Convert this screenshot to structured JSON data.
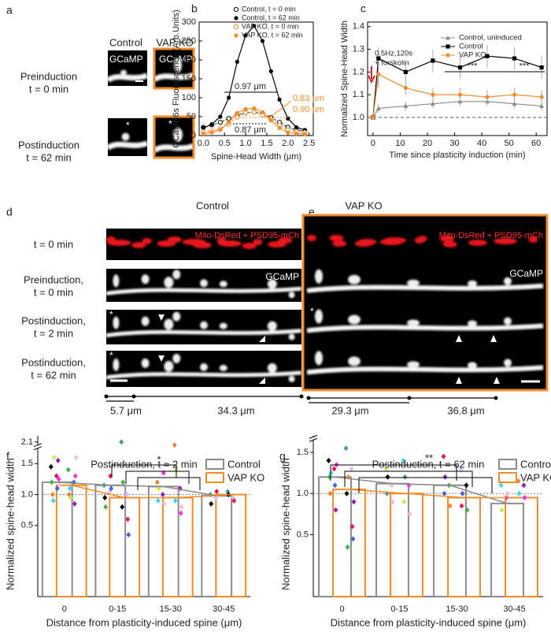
{
  "panel_labels": [
    "a",
    "b",
    "c",
    "d",
    "e",
    "f",
    "g"
  ],
  "panel_a": {
    "columns": [
      "Control",
      "VAP KO"
    ],
    "rows": [
      [
        "Preinduction",
        "t = 0 min"
      ],
      [
        "Postinduction",
        "t = 62 min"
      ]
    ],
    "image_labels": [
      "GCaMP",
      "GCaMP"
    ],
    "markers": [
      "*",
      "*"
    ]
  },
  "panel_d": {
    "title": "Control",
    "overlay_label": "Mito-DsRed + PSD95-mCh",
    "channel_label": "GCaMP",
    "rows": [
      [
        "t = 0 min"
      ],
      [
        "Preinduction,",
        "t = 0 min"
      ],
      [
        "Postinduction,",
        "t =  2 min"
      ],
      [
        "Postinduction,",
        "t = 62 min"
      ]
    ],
    "markers": [
      "*",
      "*"
    ],
    "distances": [
      "5.7 μm",
      "34.3 μm"
    ]
  },
  "panel_e": {
    "title": "VAP KO",
    "overlay_label": "Mito-DsRed + PSD95-mCh",
    "channel_label": "GCaMP",
    "markers": [
      "*"
    ],
    "distances": [
      "29.3 μm",
      "36.8 μm"
    ]
  },
  "chart_data": [
    {
      "type": "line",
      "xlabel": "Spine-Head Width (μm)",
      "ylabel": "GCaMP6s Fluorescence (Arb.Units)",
      "x": [
        0,
        0.2,
        0.4,
        0.6,
        0.8,
        1.0,
        1.2,
        1.4,
        1.6,
        1.8,
        2.0,
        2.2,
        2.4
      ],
      "xlim": [
        -0.1,
        2.6
      ],
      "xticks": [
        {
          "value": 0,
          "label": "0.0"
        },
        0.5,
        {
          "value": 1,
          "label": "1.0"
        },
        1.5,
        {
          "value": 2,
          "label": "2.0"
        },
        2.5
      ],
      "ylim": [
        0,
        300
      ],
      "yticks": [
        0,
        50,
        100,
        150,
        200,
        250,
        300
      ],
      "series": [
        {
          "name": "Control,   t = 0 min",
          "color": "#000000",
          "marker": "open",
          "values": [
            22,
            28,
            35,
            45,
            55,
            60,
            62,
            58,
            48,
            35,
            22,
            15,
            12
          ]
        },
        {
          "name": "Control,   t = 62 min",
          "color": "#000000",
          "marker": "filled",
          "values": [
            20,
            30,
            50,
            100,
            195,
            265,
            290,
            250,
            170,
            95,
            45,
            22,
            15
          ]
        },
        {
          "name": "VAP KO, t = 0 min",
          "color": "#f28c28",
          "marker": "open",
          "values": [
            10,
            12,
            18,
            30,
            48,
            60,
            62,
            55,
            42,
            28,
            15,
            10,
            8
          ]
        },
        {
          "name": "VAP KO, t = 62 min",
          "color": "#f28c28",
          "marker": "filled",
          "values": [
            5,
            8,
            15,
            35,
            60,
            70,
            72,
            62,
            40,
            20,
            8,
            5,
            4
          ]
        }
      ],
      "annotations": [
        "0.97 μm",
        "0.87 μm",
        "0.83 μm",
        "0.90 μm"
      ]
    },
    {
      "type": "line",
      "xlabel": "Time since plasticity induction (min)",
      "ylabel": "Normalized Spine-Head Width",
      "x": [
        0,
        2,
        12,
        22,
        32,
        42,
        52,
        62
      ],
      "xlim": [
        -2,
        64
      ],
      "xticks": [
        0,
        10,
        20,
        30,
        40,
        50,
        60
      ],
      "ylim": [
        0.92,
        1.42
      ],
      "yticks": [
        {
          "value": 1,
          "label": "1.0"
        },
        1.1,
        1.2,
        1.3,
        1.4
      ],
      "hline": 1,
      "series": [
        {
          "name": "Control, uninduced",
          "color": "#8c8c8c",
          "marker": "triangle",
          "values": [
            1.0,
            1.04,
            1.05,
            1.06,
            1.07,
            1.07,
            1.06,
            1.05
          ],
          "errors": [
            0,
            0.02,
            0.02,
            0.02,
            0.02,
            0.02,
            0.02,
            0.02
          ]
        },
        {
          "name": "Control",
          "color": "#000000",
          "marker": "square",
          "values": [
            1.0,
            1.26,
            1.2,
            1.25,
            1.22,
            1.27,
            1.26,
            1.22
          ],
          "errors": [
            0,
            0.05,
            0.04,
            0.05,
            0.05,
            0.05,
            0.05,
            0.05
          ]
        },
        {
          "name": "VAP KO",
          "color": "#f28c28",
          "marker": "circle",
          "values": [
            1.0,
            1.19,
            1.13,
            1.1,
            1.1,
            1.09,
            1.1,
            1.09
          ],
          "errors": [
            0,
            0.06,
            0.03,
            0.03,
            0.03,
            0.03,
            0.03,
            0.03
          ]
        }
      ],
      "annotations": [
        "0.5Hz,120s",
        "+ forskolin",
        "***",
        "***"
      ]
    },
    {
      "type": "bar",
      "title": "Postinduction, t = 2 min",
      "xlabel": "Distance from plasticity-induced spine (μm)",
      "ylabel": "Normalized spine-head width",
      "categories": [
        "0",
        "0-15",
        "15-30",
        "30-45"
      ],
      "ylim": [
        -0.65,
        2.2
      ],
      "ybreak": [
        1.75,
        2.0
      ],
      "yticks": [
        0.5,
        {
          "value": 1,
          "label": "1.0"
        },
        1.5,
        2.1
      ],
      "series": [
        {
          "name": "Control",
          "color": "#8c8c8c",
          "values": [
            1.2,
            1.15,
            1.13,
            0.98
          ],
          "points": [
            [
              1.45,
              1.3,
              1.2,
              1.1,
              1.0,
              1.55,
              0.9,
              1.25,
              1.6,
              1.15
            ],
            [
              1.15,
              1.05,
              0.95,
              1.3,
              0.8,
              1.1
            ],
            [
              1.2,
              1.0,
              0.9,
              1.35,
              1.1,
              0.85
            ],
            [
              1.0,
              0.95,
              0.85,
              1.05
            ]
          ]
        },
        {
          "name": "VAP KO",
          "color": "#f28c28",
          "values": [
            1.15,
            0.95,
            0.95,
            1.0
          ],
          "points": [
            [
              1.4,
              1.2,
              1.0,
              0.85,
              1.1,
              1.3,
              0.95,
              1.6
            ],
            [
              2.1,
              1.0,
              0.8,
              0.6,
              1.2,
              0.35
            ],
            [
              1.8,
              1.1,
              0.9,
              0.7,
              1.4,
              0.8
            ],
            [
              1.05,
              0.95,
              1.0,
              0.9
            ]
          ]
        }
      ],
      "point_colors": [
        "#000000",
        "#e6194b",
        "#3cb44b",
        "#4363d8",
        "#f58231",
        "#911eb4",
        "#42d4f4",
        "#f032e6",
        "#bfef45",
        "#fabed4",
        "#469990",
        "#dcbeff"
      ],
      "annotations": [
        "*"
      ]
    },
    {
      "type": "bar",
      "title": "Postinduction, t = 62 min",
      "xlabel": "Distance from plasticity-induced spine (μm)",
      "ylabel": "Normalized spine-head width",
      "categories": [
        "0",
        "0-15",
        "15-30",
        "30-45"
      ],
      "ylim": [
        -0.25,
        1.8
      ],
      "ybreak": [
        1.65,
        1.75
      ],
      "yticks": [
        0.5,
        {
          "value": 1,
          "label": "1.0"
        },
        1.5
      ],
      "series": [
        {
          "name": "Control",
          "color": "#8c8c8c",
          "values": [
            1.2,
            1.12,
            1.1,
            0.88
          ],
          "points": [
            [
              1.4,
              1.3,
              1.2,
              1.1,
              1.0,
              0.8,
              1.25,
              1.35
            ],
            [
              1.3,
              1.1,
              1.0,
              0.9,
              1.2
            ],
            [
              1.45,
              1.1,
              1.0,
              0.85,
              1.2
            ],
            [
              1.1,
              0.95,
              0.8,
              1.0
            ]
          ]
        },
        {
          "name": "VAP KO",
          "color": "#f28c28",
          "values": [
            1.05,
            1.0,
            0.95,
            0.95
          ],
          "points": [
            [
              1.55,
              1.3,
              1.0,
              0.6,
              0.35,
              0.45,
              1.2,
              0.9
            ],
            [
              1.4,
              1.1,
              0.9,
              0.75,
              1.2
            ],
            [
              1.3,
              1.1,
              0.85,
              0.8,
              1.0
            ],
            [
              1.15,
              1.1,
              1.0,
              0.95
            ]
          ]
        }
      ],
      "point_colors": [
        "#000000",
        "#e6194b",
        "#3cb44b",
        "#4363d8",
        "#f58231",
        "#911eb4",
        "#42d4f4",
        "#f032e6",
        "#bfef45",
        "#fabed4",
        "#469990",
        "#dcbeff"
      ],
      "annotations": [
        "**"
      ]
    }
  ]
}
